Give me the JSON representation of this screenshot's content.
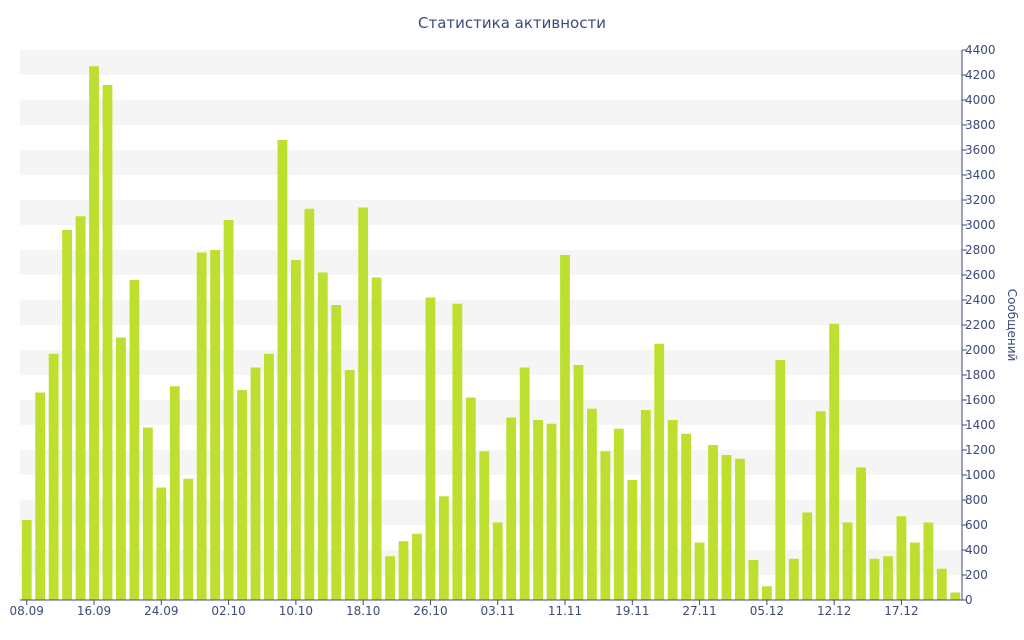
{
  "chart_data": {
    "type": "bar",
    "title": "Статистика активности",
    "xlabel": "",
    "ylabel": "Сообщений",
    "ylim": [
      0,
      4400
    ],
    "y_ticks": [
      0,
      200,
      400,
      600,
      800,
      1000,
      1200,
      1400,
      1600,
      1800,
      2000,
      2200,
      2400,
      2600,
      2800,
      3000,
      3200,
      3400,
      3600,
      3800,
      4000,
      4200,
      4400
    ],
    "y_axis_side": "right",
    "x_ticks": [
      {
        "label": "08.09",
        "index": 0
      },
      {
        "label": "16.09",
        "index": 5
      },
      {
        "label": "24.09",
        "index": 10
      },
      {
        "label": "02.10",
        "index": 15
      },
      {
        "label": "10.10",
        "index": 20
      },
      {
        "label": "18.10",
        "index": 25
      },
      {
        "label": "26.10",
        "index": 30
      },
      {
        "label": "03.11",
        "index": 35
      },
      {
        "label": "11.11",
        "index": 40
      },
      {
        "label": "19.11",
        "index": 45
      },
      {
        "label": "27.11",
        "index": 50
      },
      {
        "label": "05.12",
        "index": 55
      },
      {
        "label": "12.12",
        "index": 60
      },
      {
        "label": "17.12",
        "index": 65
      }
    ],
    "values": [
      640,
      1660,
      1970,
      2960,
      3070,
      4270,
      4120,
      2100,
      2560,
      1380,
      900,
      1710,
      970,
      2780,
      2800,
      3040,
      1680,
      1860,
      1970,
      3680,
      2720,
      3130,
      2620,
      2360,
      1840,
      3140,
      2580,
      350,
      470,
      530,
      2420,
      830,
      2370,
      1620,
      1190,
      620,
      1460,
      1860,
      1440,
      1410,
      2760,
      1880,
      1530,
      1190,
      1370,
      960,
      1520,
      2050,
      1440,
      1330,
      460,
      1240,
      1160,
      1130,
      320,
      110,
      1920,
      330,
      700,
      1510,
      2210,
      620,
      1060,
      330,
      350,
      670,
      460,
      620,
      250,
      60
    ],
    "grid": "horizontal-bands",
    "legend": "none",
    "colors": {
      "bar": "#bde030",
      "band": "#f5f5f5",
      "axis": "#3c4a7a",
      "text": "#3c4a7a"
    }
  }
}
